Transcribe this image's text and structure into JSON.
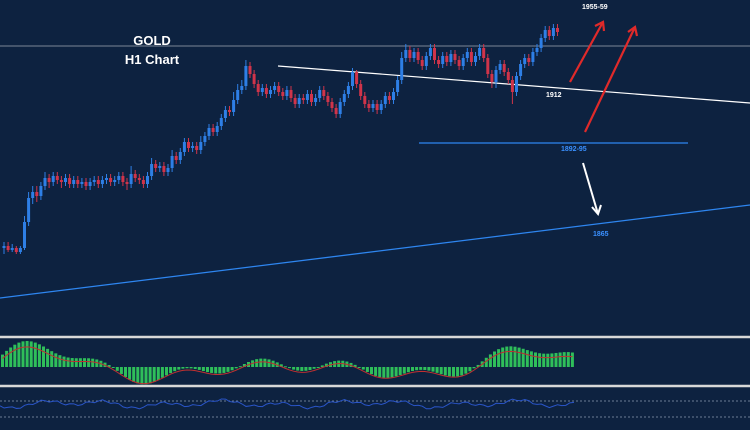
{
  "chart_data": {
    "type": "candlestick",
    "title": "GOLD",
    "subtitle": "H1 Chart",
    "candles": [
      {
        "o": 1857,
        "c": 1858,
        "h": 1860,
        "l": 1854,
        "up": true
      },
      {
        "o": 1858,
        "c": 1856,
        "h": 1860,
        "l": 1855,
        "up": false
      },
      {
        "o": 1856,
        "c": 1857,
        "h": 1859,
        "l": 1855,
        "up": true
      },
      {
        "o": 1857,
        "c": 1855,
        "h": 1858,
        "l": 1854,
        "up": false
      },
      {
        "o": 1855,
        "c": 1857,
        "h": 1858,
        "l": 1854,
        "up": true
      },
      {
        "o": 1857,
        "c": 1870,
        "h": 1873,
        "l": 1856,
        "up": true
      },
      {
        "o": 1870,
        "c": 1882,
        "h": 1885,
        "l": 1868,
        "up": true
      },
      {
        "o": 1882,
        "c": 1885,
        "h": 1888,
        "l": 1879,
        "up": true
      },
      {
        "o": 1885,
        "c": 1883,
        "h": 1888,
        "l": 1880,
        "up": false
      },
      {
        "o": 1883,
        "c": 1888,
        "h": 1890,
        "l": 1881,
        "up": true
      },
      {
        "o": 1888,
        "c": 1892,
        "h": 1895,
        "l": 1886,
        "up": true
      },
      {
        "o": 1892,
        "c": 1890,
        "h": 1894,
        "l": 1887,
        "up": false
      },
      {
        "o": 1890,
        "c": 1893,
        "h": 1895,
        "l": 1888,
        "up": true
      },
      {
        "o": 1893,
        "c": 1891,
        "h": 1895,
        "l": 1889,
        "up": false
      },
      {
        "o": 1891,
        "c": 1890,
        "h": 1893,
        "l": 1887,
        "up": false
      },
      {
        "o": 1890,
        "c": 1892,
        "h": 1894,
        "l": 1888,
        "up": true
      },
      {
        "o": 1892,
        "c": 1889,
        "h": 1894,
        "l": 1887,
        "up": false
      },
      {
        "o": 1889,
        "c": 1891,
        "h": 1893,
        "l": 1887,
        "up": true
      },
      {
        "o": 1891,
        "c": 1889,
        "h": 1893,
        "l": 1887,
        "up": false
      },
      {
        "o": 1889,
        "c": 1890,
        "h": 1892,
        "l": 1887,
        "up": true
      },
      {
        "o": 1890,
        "c": 1888,
        "h": 1892,
        "l": 1886,
        "up": false
      },
      {
        "o": 1888,
        "c": 1890,
        "h": 1892,
        "l": 1886,
        "up": true
      },
      {
        "o": 1890,
        "c": 1891,
        "h": 1893,
        "l": 1888,
        "up": true
      },
      {
        "o": 1891,
        "c": 1889,
        "h": 1893,
        "l": 1887,
        "up": false
      },
      {
        "o": 1889,
        "c": 1891,
        "h": 1893,
        "l": 1887,
        "up": true
      },
      {
        "o": 1891,
        "c": 1892,
        "h": 1894,
        "l": 1889,
        "up": true
      },
      {
        "o": 1892,
        "c": 1890,
        "h": 1894,
        "l": 1888,
        "up": false
      },
      {
        "o": 1890,
        "c": 1891,
        "h": 1893,
        "l": 1888,
        "up": true
      },
      {
        "o": 1891,
        "c": 1893,
        "h": 1895,
        "l": 1889,
        "up": true
      },
      {
        "o": 1893,
        "c": 1890,
        "h": 1895,
        "l": 1888,
        "up": false
      },
      {
        "o": 1890,
        "c": 1889,
        "h": 1892,
        "l": 1886,
        "up": false
      },
      {
        "o": 1889,
        "c": 1894,
        "h": 1898,
        "l": 1887,
        "up": true
      },
      {
        "o": 1894,
        "c": 1892,
        "h": 1896,
        "l": 1890,
        "up": false
      },
      {
        "o": 1892,
        "c": 1891,
        "h": 1894,
        "l": 1889,
        "up": false
      },
      {
        "o": 1891,
        "c": 1889,
        "h": 1893,
        "l": 1887,
        "up": false
      },
      {
        "o": 1889,
        "c": 1893,
        "h": 1895,
        "l": 1887,
        "up": true
      },
      {
        "o": 1893,
        "c": 1899,
        "h": 1902,
        "l": 1891,
        "up": true
      },
      {
        "o": 1899,
        "c": 1897,
        "h": 1901,
        "l": 1895,
        "up": false
      },
      {
        "o": 1897,
        "c": 1898,
        "h": 1900,
        "l": 1895,
        "up": true
      },
      {
        "o": 1898,
        "c": 1895,
        "h": 1900,
        "l": 1893,
        "up": false
      },
      {
        "o": 1895,
        "c": 1897,
        "h": 1899,
        "l": 1893,
        "up": true
      },
      {
        "o": 1897,
        "c": 1903,
        "h": 1906,
        "l": 1895,
        "up": true
      },
      {
        "o": 1903,
        "c": 1901,
        "h": 1905,
        "l": 1899,
        "up": false
      },
      {
        "o": 1901,
        "c": 1905,
        "h": 1907,
        "l": 1899,
        "up": true
      },
      {
        "o": 1905,
        "c": 1910,
        "h": 1912,
        "l": 1903,
        "up": true
      },
      {
        "o": 1910,
        "c": 1907,
        "h": 1912,
        "l": 1905,
        "up": false
      },
      {
        "o": 1907,
        "c": 1908,
        "h": 1910,
        "l": 1905,
        "up": true
      },
      {
        "o": 1908,
        "c": 1906,
        "h": 1910,
        "l": 1904,
        "up": false
      },
      {
        "o": 1906,
        "c": 1910,
        "h": 1913,
        "l": 1904,
        "up": true
      },
      {
        "o": 1910,
        "c": 1913,
        "h": 1915,
        "l": 1908,
        "up": true
      },
      {
        "o": 1913,
        "c": 1917,
        "h": 1919,
        "l": 1911,
        "up": true
      },
      {
        "o": 1917,
        "c": 1915,
        "h": 1919,
        "l": 1913,
        "up": false
      },
      {
        "o": 1915,
        "c": 1918,
        "h": 1920,
        "l": 1913,
        "up": true
      },
      {
        "o": 1918,
        "c": 1922,
        "h": 1924,
        "l": 1916,
        "up": true
      },
      {
        "o": 1922,
        "c": 1926,
        "h": 1928,
        "l": 1920,
        "up": true
      },
      {
        "o": 1926,
        "c": 1925,
        "h": 1928,
        "l": 1923,
        "up": false
      },
      {
        "o": 1925,
        "c": 1931,
        "h": 1935,
        "l": 1923,
        "up": true
      },
      {
        "o": 1931,
        "c": 1936,
        "h": 1939,
        "l": 1929,
        "up": true
      },
      {
        "o": 1936,
        "c": 1938,
        "h": 1941,
        "l": 1934,
        "up": true
      },
      {
        "o": 1938,
        "c": 1948,
        "h": 1951,
        "l": 1936,
        "up": true
      },
      {
        "o": 1948,
        "c": 1944,
        "h": 1950,
        "l": 1942,
        "up": false
      },
      {
        "o": 1944,
        "c": 1939,
        "h": 1946,
        "l": 1937,
        "up": false
      },
      {
        "o": 1939,
        "c": 1935,
        "h": 1941,
        "l": 1933,
        "up": false
      },
      {
        "o": 1935,
        "c": 1937,
        "h": 1939,
        "l": 1933,
        "up": true
      },
      {
        "o": 1937,
        "c": 1934,
        "h": 1939,
        "l": 1932,
        "up": false
      },
      {
        "o": 1934,
        "c": 1936,
        "h": 1938,
        "l": 1932,
        "up": true
      },
      {
        "o": 1936,
        "c": 1938,
        "h": 1940,
        "l": 1934,
        "up": true
      },
      {
        "o": 1938,
        "c": 1935,
        "h": 1940,
        "l": 1933,
        "up": false
      },
      {
        "o": 1935,
        "c": 1933,
        "h": 1937,
        "l": 1931,
        "up": false
      },
      {
        "o": 1933,
        "c": 1936,
        "h": 1938,
        "l": 1931,
        "up": true
      },
      {
        "o": 1936,
        "c": 1932,
        "h": 1938,
        "l": 1930,
        "up": false
      },
      {
        "o": 1932,
        "c": 1929,
        "h": 1934,
        "l": 1927,
        "up": false
      },
      {
        "o": 1929,
        "c": 1932,
        "h": 1934,
        "l": 1927,
        "up": true
      },
      {
        "o": 1932,
        "c": 1931,
        "h": 1934,
        "l": 1929,
        "up": false
      },
      {
        "o": 1931,
        "c": 1934,
        "h": 1936,
        "l": 1929,
        "up": true
      },
      {
        "o": 1934,
        "c": 1930,
        "h": 1936,
        "l": 1928,
        "up": false
      },
      {
        "o": 1930,
        "c": 1932,
        "h": 1934,
        "l": 1928,
        "up": true
      },
      {
        "o": 1932,
        "c": 1936,
        "h": 1938,
        "l": 1930,
        "up": true
      },
      {
        "o": 1936,
        "c": 1933,
        "h": 1938,
        "l": 1931,
        "up": false
      },
      {
        "o": 1933,
        "c": 1930,
        "h": 1935,
        "l": 1928,
        "up": false
      },
      {
        "o": 1930,
        "c": 1927,
        "h": 1932,
        "l": 1925,
        "up": false
      },
      {
        "o": 1927,
        "c": 1924,
        "h": 1929,
        "l": 1922,
        "up": false
      },
      {
        "o": 1924,
        "c": 1930,
        "h": 1932,
        "l": 1922,
        "up": true
      },
      {
        "o": 1930,
        "c": 1934,
        "h": 1936,
        "l": 1928,
        "up": true
      },
      {
        "o": 1934,
        "c": 1938,
        "h": 1940,
        "l": 1932,
        "up": true
      },
      {
        "o": 1938,
        "c": 1945,
        "h": 1947,
        "l": 1936,
        "up": true
      },
      {
        "o": 1945,
        "c": 1939,
        "h": 1946,
        "l": 1937,
        "up": false
      },
      {
        "o": 1939,
        "c": 1933,
        "h": 1941,
        "l": 1931,
        "up": false
      },
      {
        "o": 1933,
        "c": 1929,
        "h": 1935,
        "l": 1927,
        "up": false
      },
      {
        "o": 1929,
        "c": 1927,
        "h": 1931,
        "l": 1925,
        "up": false
      },
      {
        "o": 1927,
        "c": 1929,
        "h": 1931,
        "l": 1925,
        "up": true
      },
      {
        "o": 1929,
        "c": 1926,
        "h": 1931,
        "l": 1924,
        "up": false
      },
      {
        "o": 1926,
        "c": 1929,
        "h": 1931,
        "l": 1924,
        "up": true
      },
      {
        "o": 1929,
        "c": 1933,
        "h": 1935,
        "l": 1927,
        "up": true
      },
      {
        "o": 1933,
        "c": 1931,
        "h": 1935,
        "l": 1929,
        "up": false
      },
      {
        "o": 1931,
        "c": 1935,
        "h": 1937,
        "l": 1929,
        "up": true
      },
      {
        "o": 1935,
        "c": 1941,
        "h": 1943,
        "l": 1933,
        "up": true
      },
      {
        "o": 1941,
        "c": 1952,
        "h": 1955,
        "l": 1939,
        "up": true
      },
      {
        "o": 1952,
        "c": 1956,
        "h": 1959,
        "l": 1950,
        "up": true
      },
      {
        "o": 1956,
        "c": 1952,
        "h": 1958,
        "l": 1950,
        "up": false
      },
      {
        "o": 1952,
        "c": 1955,
        "h": 1957,
        "l": 1950,
        "up": true
      },
      {
        "o": 1955,
        "c": 1951,
        "h": 1957,
        "l": 1949,
        "up": false
      },
      {
        "o": 1951,
        "c": 1948,
        "h": 1953,
        "l": 1946,
        "up": false
      },
      {
        "o": 1948,
        "c": 1953,
        "h": 1955,
        "l": 1946,
        "up": true
      },
      {
        "o": 1953,
        "c": 1957,
        "h": 1959,
        "l": 1951,
        "up": true
      },
      {
        "o": 1957,
        "c": 1951,
        "h": 1959,
        "l": 1949,
        "up": false
      },
      {
        "o": 1951,
        "c": 1949,
        "h": 1953,
        "l": 1947,
        "up": false
      },
      {
        "o": 1949,
        "c": 1953,
        "h": 1955,
        "l": 1947,
        "up": true
      },
      {
        "o": 1953,
        "c": 1950,
        "h": 1955,
        "l": 1948,
        "up": false
      },
      {
        "o": 1950,
        "c": 1954,
        "h": 1956,
        "l": 1948,
        "up": true
      },
      {
        "o": 1954,
        "c": 1951,
        "h": 1956,
        "l": 1949,
        "up": false
      },
      {
        "o": 1951,
        "c": 1948,
        "h": 1953,
        "l": 1946,
        "up": false
      },
      {
        "o": 1948,
        "c": 1952,
        "h": 1954,
        "l": 1946,
        "up": true
      },
      {
        "o": 1952,
        "c": 1955,
        "h": 1957,
        "l": 1950,
        "up": true
      },
      {
        "o": 1955,
        "c": 1950,
        "h": 1957,
        "l": 1948,
        "up": false
      },
      {
        "o": 1950,
        "c": 1953,
        "h": 1955,
        "l": 1948,
        "up": true
      },
      {
        "o": 1953,
        "c": 1957,
        "h": 1959,
        "l": 1951,
        "up": true
      },
      {
        "o": 1957,
        "c": 1952,
        "h": 1959,
        "l": 1950,
        "up": false
      },
      {
        "o": 1952,
        "c": 1944,
        "h": 1954,
        "l": 1942,
        "up": false
      },
      {
        "o": 1944,
        "c": 1940,
        "h": 1946,
        "l": 1937,
        "up": false
      },
      {
        "o": 1940,
        "c": 1946,
        "h": 1948,
        "l": 1937,
        "up": true
      },
      {
        "o": 1946,
        "c": 1949,
        "h": 1951,
        "l": 1944,
        "up": true
      },
      {
        "o": 1949,
        "c": 1945,
        "h": 1951,
        "l": 1943,
        "up": false
      },
      {
        "o": 1945,
        "c": 1941,
        "h": 1947,
        "l": 1939,
        "up": false
      },
      {
        "o": 1941,
        "c": 1935,
        "h": 1943,
        "l": 1929,
        "up": false
      },
      {
        "o": 1935,
        "c": 1943,
        "h": 1945,
        "l": 1933,
        "up": true
      },
      {
        "o": 1943,
        "c": 1949,
        "h": 1951,
        "l": 1941,
        "up": true
      },
      {
        "o": 1949,
        "c": 1952,
        "h": 1954,
        "l": 1947,
        "up": true
      },
      {
        "o": 1952,
        "c": 1950,
        "h": 1954,
        "l": 1948,
        "up": false
      },
      {
        "o": 1950,
        "c": 1955,
        "h": 1957,
        "l": 1948,
        "up": true
      },
      {
        "o": 1955,
        "c": 1957,
        "h": 1959,
        "l": 1953,
        "up": true
      },
      {
        "o": 1957,
        "c": 1962,
        "h": 1964,
        "l": 1955,
        "up": true
      },
      {
        "o": 1962,
        "c": 1966,
        "h": 1968,
        "l": 1960,
        "up": true
      },
      {
        "o": 1966,
        "c": 1963,
        "h": 1968,
        "l": 1961,
        "up": false
      },
      {
        "o": 1963,
        "c": 1967,
        "h": 1969,
        "l": 1961,
        "up": true
      },
      {
        "o": 1967,
        "c": 1965,
        "h": 1969,
        "l": 1963,
        "up": false
      }
    ],
    "annotations": {
      "target": "1955-59",
      "pivot": "1912",
      "support": "1892-95",
      "lower": "1865"
    },
    "colors": {
      "background": "#0d2240",
      "candle_up": "#2e7fe6",
      "candle_down": "#d0344a",
      "trendline_white": "#ffffff",
      "trendline_blue": "#2e86f0",
      "arrow_red": "#e02a2a",
      "arrow_white": "#ffffff",
      "macd_hist": "#2fbf5a",
      "macd_signal": "#c03030",
      "indicator_line": "#2a55c8",
      "panel_divider": "#d8d8d8",
      "label_blue": "#3a90ff"
    }
  }
}
